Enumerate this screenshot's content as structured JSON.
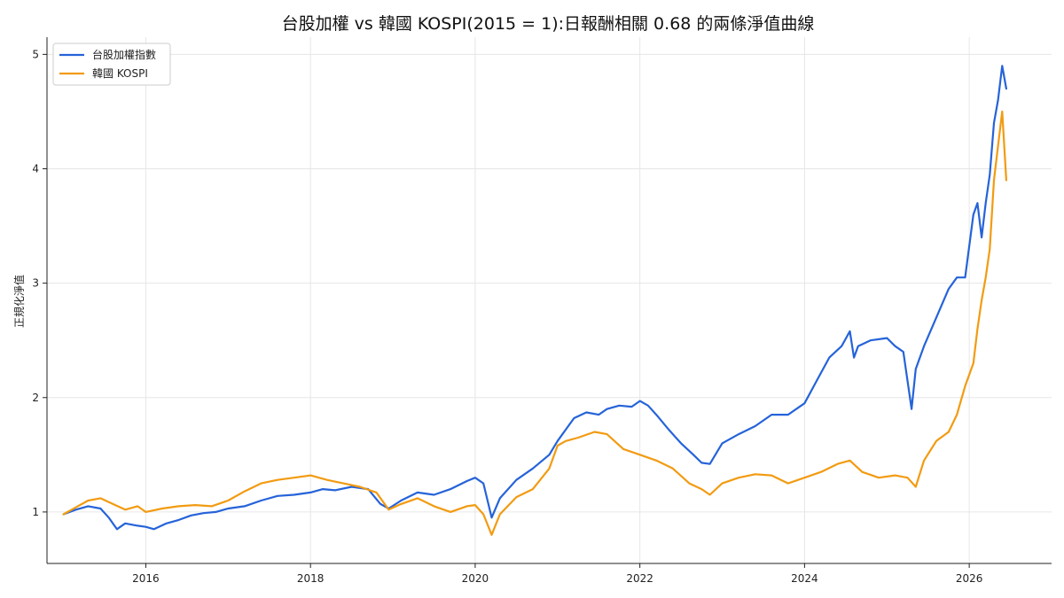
{
  "chart_data": {
    "type": "line",
    "title": "台股加權 vs 韓國 KOSPI(2015 = 1):日報酬相關 0.68 的兩條淨值曲線",
    "xlabel": "",
    "ylabel": "正規化淨值",
    "xlim": [
      2014.8,
      2027.0
    ],
    "ylim": [
      0.55,
      5.15
    ],
    "x_ticks": [
      2016,
      2018,
      2020,
      2022,
      2024,
      2026
    ],
    "x_tick_labels": [
      "2016",
      "2018",
      "2020",
      "2022",
      "2024",
      "2026"
    ],
    "y_ticks": [
      1,
      2,
      3,
      4,
      5
    ],
    "y_tick_labels": [
      "1",
      "2",
      "3",
      "4",
      "5"
    ],
    "grid": true,
    "legend_position": "top-left",
    "series": [
      {
        "name": "台股加權指數",
        "color": "#2563d9",
        "x": [
          2015.0,
          2015.15,
          2015.3,
          2015.45,
          2015.55,
          2015.65,
          2015.75,
          2015.9,
          2016.0,
          2016.1,
          2016.25,
          2016.4,
          2016.55,
          2016.7,
          2016.85,
          2017.0,
          2017.2,
          2017.4,
          2017.6,
          2017.8,
          2018.0,
          2018.15,
          2018.3,
          2018.5,
          2018.7,
          2018.85,
          2018.95,
          2019.1,
          2019.3,
          2019.5,
          2019.7,
          2019.9,
          2020.0,
          2020.1,
          2020.2,
          2020.3,
          2020.5,
          2020.7,
          2020.9,
          2021.0,
          2021.1,
          2021.2,
          2021.35,
          2021.5,
          2021.6,
          2021.75,
          2021.9,
          2022.0,
          2022.1,
          2022.2,
          2022.35,
          2022.5,
          2022.65,
          2022.75,
          2022.85,
          2023.0,
          2023.2,
          2023.4,
          2023.6,
          2023.8,
          2024.0,
          2024.15,
          2024.3,
          2024.45,
          2024.55,
          2024.6,
          2024.65,
          2024.8,
          2025.0,
          2025.1,
          2025.2,
          2025.3,
          2025.35,
          2025.45,
          2025.6,
          2025.75,
          2025.85,
          2025.95,
          2026.05,
          2026.1,
          2026.15,
          2026.2,
          2026.25,
          2026.3,
          2026.35,
          2026.4,
          2026.45
        ],
        "values": [
          0.98,
          1.02,
          1.05,
          1.03,
          0.95,
          0.85,
          0.9,
          0.88,
          0.87,
          0.85,
          0.9,
          0.93,
          0.97,
          0.99,
          1.0,
          1.03,
          1.05,
          1.1,
          1.14,
          1.15,
          1.17,
          1.2,
          1.19,
          1.22,
          1.2,
          1.07,
          1.03,
          1.1,
          1.17,
          1.15,
          1.2,
          1.27,
          1.3,
          1.25,
          0.95,
          1.12,
          1.28,
          1.38,
          1.5,
          1.62,
          1.72,
          1.82,
          1.87,
          1.85,
          1.9,
          1.93,
          1.92,
          1.97,
          1.93,
          1.85,
          1.72,
          1.6,
          1.5,
          1.43,
          1.42,
          1.6,
          1.68,
          1.75,
          1.85,
          1.85,
          1.95,
          2.15,
          2.35,
          2.45,
          2.58,
          2.35,
          2.45,
          2.5,
          2.52,
          2.45,
          2.4,
          1.9,
          2.25,
          2.45,
          2.7,
          2.95,
          3.05,
          3.05,
          3.6,
          3.7,
          3.4,
          3.7,
          3.95,
          4.4,
          4.6,
          4.9,
          4.7
        ]
      },
      {
        "name": "韓國 KOSPI",
        "color": "#f29b11",
        "x": [
          2015.0,
          2015.15,
          2015.3,
          2015.45,
          2015.6,
          2015.75,
          2015.9,
          2016.0,
          2016.2,
          2016.4,
          2016.6,
          2016.8,
          2017.0,
          2017.2,
          2017.4,
          2017.6,
          2017.8,
          2018.0,
          2018.2,
          2018.4,
          2018.6,
          2018.8,
          2018.95,
          2019.1,
          2019.3,
          2019.5,
          2019.7,
          2019.9,
          2020.0,
          2020.1,
          2020.2,
          2020.3,
          2020.5,
          2020.7,
          2020.9,
          2021.0,
          2021.1,
          2021.25,
          2021.45,
          2021.6,
          2021.8,
          2022.0,
          2022.2,
          2022.4,
          2022.6,
          2022.75,
          2022.85,
          2023.0,
          2023.2,
          2023.4,
          2023.6,
          2023.8,
          2024.0,
          2024.2,
          2024.4,
          2024.55,
          2024.7,
          2024.9,
          2025.1,
          2025.25,
          2025.35,
          2025.45,
          2025.6,
          2025.75,
          2025.85,
          2025.95,
          2026.05,
          2026.1,
          2026.15,
          2026.2,
          2026.25,
          2026.3,
          2026.35,
          2026.4,
          2026.45
        ],
        "values": [
          0.98,
          1.04,
          1.1,
          1.12,
          1.07,
          1.02,
          1.05,
          1.0,
          1.03,
          1.05,
          1.06,
          1.05,
          1.1,
          1.18,
          1.25,
          1.28,
          1.3,
          1.32,
          1.28,
          1.25,
          1.22,
          1.17,
          1.02,
          1.07,
          1.12,
          1.05,
          1.0,
          1.05,
          1.06,
          0.98,
          0.8,
          0.98,
          1.13,
          1.2,
          1.38,
          1.58,
          1.62,
          1.65,
          1.7,
          1.68,
          1.55,
          1.5,
          1.45,
          1.38,
          1.25,
          1.2,
          1.15,
          1.25,
          1.3,
          1.33,
          1.32,
          1.25,
          1.3,
          1.35,
          1.42,
          1.45,
          1.35,
          1.3,
          1.32,
          1.3,
          1.22,
          1.45,
          1.62,
          1.7,
          1.85,
          2.1,
          2.3,
          2.6,
          2.85,
          3.05,
          3.3,
          3.9,
          4.2,
          4.5,
          3.9
        ]
      }
    ]
  }
}
